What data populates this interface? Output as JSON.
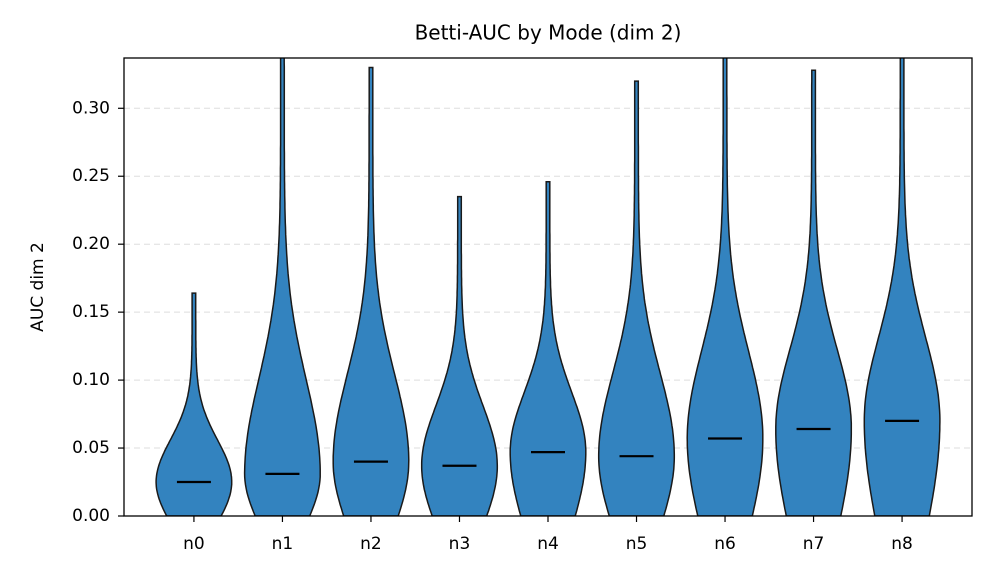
{
  "chart_data": {
    "type": "violin",
    "title": "Betti-AUC by Mode (dim 2)",
    "y_label": "AUC dim 2",
    "categories": [
      "n0",
      "n1",
      "n2",
      "n3",
      "n4",
      "n5",
      "n6",
      "n7",
      "n8"
    ],
    "medians": [
      0.025,
      0.031,
      0.04,
      0.037,
      0.047,
      0.044,
      0.057,
      0.064,
      0.07
    ],
    "mins": [
      0,
      0,
      0,
      0,
      0,
      0,
      0,
      0,
      0
    ],
    "maxs": [
      0.164,
      0.345,
      0.33,
      0.235,
      0.246,
      0.32,
      0.345,
      0.328,
      0.345
    ],
    "color": "#3383bf",
    "edge_color": "#1a1a1a",
    "median_color": "#000000",
    "ylim": [
      0,
      0.337
    ],
    "yticks": [
      {
        "value": 0,
        "label": "0.00"
      },
      {
        "value": 0.05,
        "label": "0.05"
      },
      {
        "value": 0.1,
        "label": "0.10"
      },
      {
        "value": 0.15,
        "label": "0.15"
      },
      {
        "value": 0.2,
        "label": "0.20"
      },
      {
        "value": 0.25,
        "label": "0.25"
      },
      {
        "value": 0.3,
        "label": "0.30"
      }
    ],
    "grid": true
  }
}
